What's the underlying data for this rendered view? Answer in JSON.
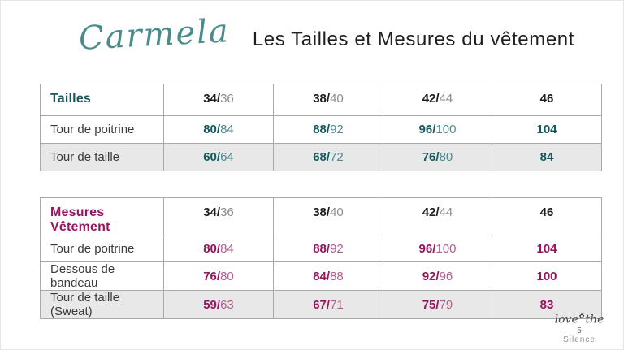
{
  "header": {
    "brand_script": "Carmela",
    "title": "Les Tailles et Mesures du vêtement"
  },
  "colors": {
    "teal_bold": "#14595E",
    "teal_light": "#4F898D",
    "magenta_bold": "#97145E",
    "magenta_light": "#B25E8E",
    "header_number_dark": "#1D1D1D",
    "header_number_light": "#8C8C8C",
    "shaded_row_background": "#E8E8E8"
  },
  "tables": [
    {
      "corner_label": "Tailles",
      "accent_bold": "#14595E",
      "accent_light": "#4F898D",
      "size_headers": [
        {
          "main": "34/",
          "alt": "36"
        },
        {
          "main": "38/",
          "alt": "40"
        },
        {
          "main": "42/",
          "alt": "44"
        },
        {
          "main": "46",
          "alt": ""
        }
      ],
      "rows": [
        {
          "label": "Tour de poitrine",
          "shaded": false,
          "values": [
            {
              "main": "80/",
              "alt": "84"
            },
            {
              "main": "88/",
              "alt": "92"
            },
            {
              "main": "96/",
              "alt": "100"
            },
            {
              "main": "104",
              "alt": ""
            }
          ]
        },
        {
          "label": "Tour de taille",
          "shaded": true,
          "values": [
            {
              "main": "60/",
              "alt": "64"
            },
            {
              "main": "68/",
              "alt": "72"
            },
            {
              "main": "76/",
              "alt": "80"
            },
            {
              "main": "84",
              "alt": ""
            }
          ]
        }
      ]
    },
    {
      "corner_label": "Mesures Vêtement",
      "accent_bold": "#97145E",
      "accent_light": "#B25E8E",
      "size_headers": [
        {
          "main": "34/",
          "alt": "36"
        },
        {
          "main": "38/",
          "alt": "40"
        },
        {
          "main": "42/",
          "alt": "44"
        },
        {
          "main": "46",
          "alt": ""
        }
      ],
      "rows": [
        {
          "label": "Tour de poitrine",
          "shaded": false,
          "values": [
            {
              "main": "80/",
              "alt": "84"
            },
            {
              "main": "88/",
              "alt": "92"
            },
            {
              "main": "96/",
              "alt": "100"
            },
            {
              "main": "104",
              "alt": ""
            }
          ]
        },
        {
          "label": "Dessous de bandeau",
          "shaded": false,
          "values": [
            {
              "main": "76/",
              "alt": "80"
            },
            {
              "main": "84/",
              "alt": "88"
            },
            {
              "main": "92/",
              "alt": "96"
            },
            {
              "main": "100",
              "alt": ""
            }
          ]
        },
        {
          "label": "Tour de taille (Sweat)",
          "shaded": true,
          "values": [
            {
              "main": "59/",
              "alt": "63"
            },
            {
              "main": "67/",
              "alt": "71"
            },
            {
              "main": "75/",
              "alt": "79"
            },
            {
              "main": "83",
              "alt": ""
            }
          ]
        }
      ]
    }
  ],
  "footer": {
    "script_left": "love",
    "flower_glyph": "✿",
    "script_right": "the",
    "page_number": "5",
    "brand_sub": "Silence"
  }
}
